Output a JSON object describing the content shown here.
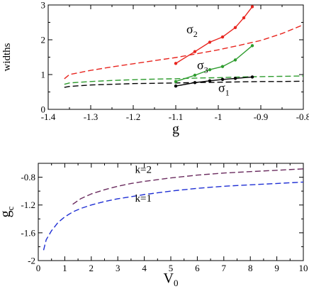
{
  "chart_data": [
    {
      "type": "line",
      "xlabel": "g",
      "ylabel": "widths",
      "xlim": [
        -1.4,
        -0.8
      ],
      "ylim": [
        0,
        3
      ],
      "xticks": [
        -1.4,
        -1.3,
        -1.2,
        -1.1,
        -1.0,
        -0.9,
        -0.8
      ],
      "xtick_labels": [
        "-1.4",
        "-1.3",
        "-1.2",
        "-1.1",
        "-1",
        "-0.9",
        "-0.8"
      ],
      "yticks": [
        0,
        1,
        2,
        3
      ],
      "ytick_labels": [
        "0",
        "1",
        "2",
        "3"
      ],
      "grid": false,
      "annotations": [
        {
          "text": "σ",
          "sub": "2",
          "x": -1.075,
          "y": 2.18
        },
        {
          "text": "σ",
          "sub": "3",
          "x": -1.05,
          "y": 1.15
        },
        {
          "text": "σ",
          "sub": "1",
          "x": -1.0,
          "y": 0.5
        }
      ],
      "series": [
        {
          "id": "dash-red",
          "style": "dashed",
          "color": "#e8251f",
          "x": [
            -1.362,
            -1.35,
            -1.3,
            -1.25,
            -1.2,
            -1.15,
            -1.1,
            -1.05,
            -1.0,
            -0.95,
            -0.9,
            -0.85,
            -0.8
          ],
          "y": [
            0.88,
            1.0,
            1.12,
            1.22,
            1.31,
            1.4,
            1.49,
            1.6,
            1.71,
            1.84,
            1.98,
            2.18,
            2.43
          ]
        },
        {
          "id": "dash-green",
          "style": "dashed",
          "color": "#2e9c2e",
          "x": [
            -1.362,
            -1.35,
            -1.3,
            -1.25,
            -1.2,
            -1.15,
            -1.1,
            -1.05,
            -1.0,
            -0.95,
            -0.9,
            -0.85,
            -0.8
          ],
          "y": [
            0.72,
            0.76,
            0.8,
            0.83,
            0.85,
            0.87,
            0.88,
            0.9,
            0.91,
            0.93,
            0.94,
            0.95,
            0.96
          ]
        },
        {
          "id": "dash-black",
          "style": "dashed",
          "color": "#000000",
          "x": [
            -1.362,
            -1.35,
            -1.3,
            -1.25,
            -1.2,
            -1.15,
            -1.1,
            -1.05,
            -1.0,
            -0.95,
            -0.9,
            -0.85,
            -0.8
          ],
          "y": [
            0.63,
            0.66,
            0.7,
            0.72,
            0.74,
            0.75,
            0.76,
            0.77,
            0.78,
            0.79,
            0.8,
            0.8,
            0.81
          ]
        },
        {
          "id": "sigma2",
          "style": "solid-markers",
          "color": "#e8251f",
          "x": [
            -1.1,
            -1.055,
            -1.02,
            -0.99,
            -0.96,
            -0.94,
            -0.92
          ],
          "y": [
            1.32,
            1.66,
            1.93,
            2.08,
            2.35,
            2.63,
            2.95
          ]
        },
        {
          "id": "sigma3",
          "style": "solid-markers",
          "color": "#2e9c2e",
          "x": [
            -1.1,
            -1.055,
            -1.02,
            -0.99,
            -0.96,
            -0.92
          ],
          "y": [
            0.8,
            0.98,
            1.14,
            1.23,
            1.42,
            1.83
          ]
        },
        {
          "id": "sigma1",
          "style": "solid-markers",
          "color": "#000000",
          "x": [
            -1.1,
            -1.055,
            -1.02,
            -0.99,
            -0.96,
            -0.92
          ],
          "y": [
            0.67,
            0.77,
            0.82,
            0.86,
            0.89,
            0.93
          ]
        }
      ]
    },
    {
      "type": "line",
      "xlabel": "V",
      "xlabel_sub": "0",
      "ylabel": "g",
      "ylabel_sub": "c",
      "xlim": [
        0,
        10
      ],
      "ylim": [
        -2,
        -0.6
      ],
      "xticks": [
        0,
        1,
        2,
        3,
        4,
        5,
        6,
        7,
        8,
        9,
        10
      ],
      "xtick_labels": [
        "0",
        "1",
        "2",
        "3",
        "4",
        "5",
        "6",
        "7",
        "8",
        "9",
        "10"
      ],
      "yticks": [
        -2.0,
        -1.6,
        -1.2,
        -0.8
      ],
      "ytick_labels": [
        "-2",
        "-1.6",
        "-1.2",
        "-0.8"
      ],
      "grid": false,
      "annotations": [
        {
          "text": "k=2",
          "x": 3.65,
          "y": -0.74
        },
        {
          "text": "k=1",
          "x": 3.65,
          "y": -1.15
        }
      ],
      "series": [
        {
          "id": "k2",
          "style": "dashed",
          "color": "#6b2c5f",
          "x": [
            1.3,
            1.6,
            2.0,
            2.5,
            3.0,
            3.5,
            4.0,
            5.0,
            6.0,
            7.0,
            8.0,
            9.0,
            10.0
          ],
          "y": [
            -1.19,
            -1.11,
            -1.04,
            -0.98,
            -0.93,
            -0.89,
            -0.86,
            -0.81,
            -0.77,
            -0.74,
            -0.72,
            -0.7,
            -0.68
          ]
        },
        {
          "id": "k1",
          "style": "dashed",
          "color": "#1f2fd4",
          "x": [
            0.2,
            0.3,
            0.5,
            0.75,
            1.0,
            1.3,
            1.6,
            2.0,
            2.5,
            3.0,
            3.5,
            4.0,
            5.0,
            6.0,
            7.0,
            8.0,
            9.0,
            10.0
          ],
          "y": [
            -1.85,
            -1.7,
            -1.57,
            -1.45,
            -1.37,
            -1.3,
            -1.25,
            -1.2,
            -1.15,
            -1.11,
            -1.08,
            -1.05,
            -1.0,
            -0.96,
            -0.93,
            -0.91,
            -0.89,
            -0.87
          ]
        }
      ]
    }
  ]
}
